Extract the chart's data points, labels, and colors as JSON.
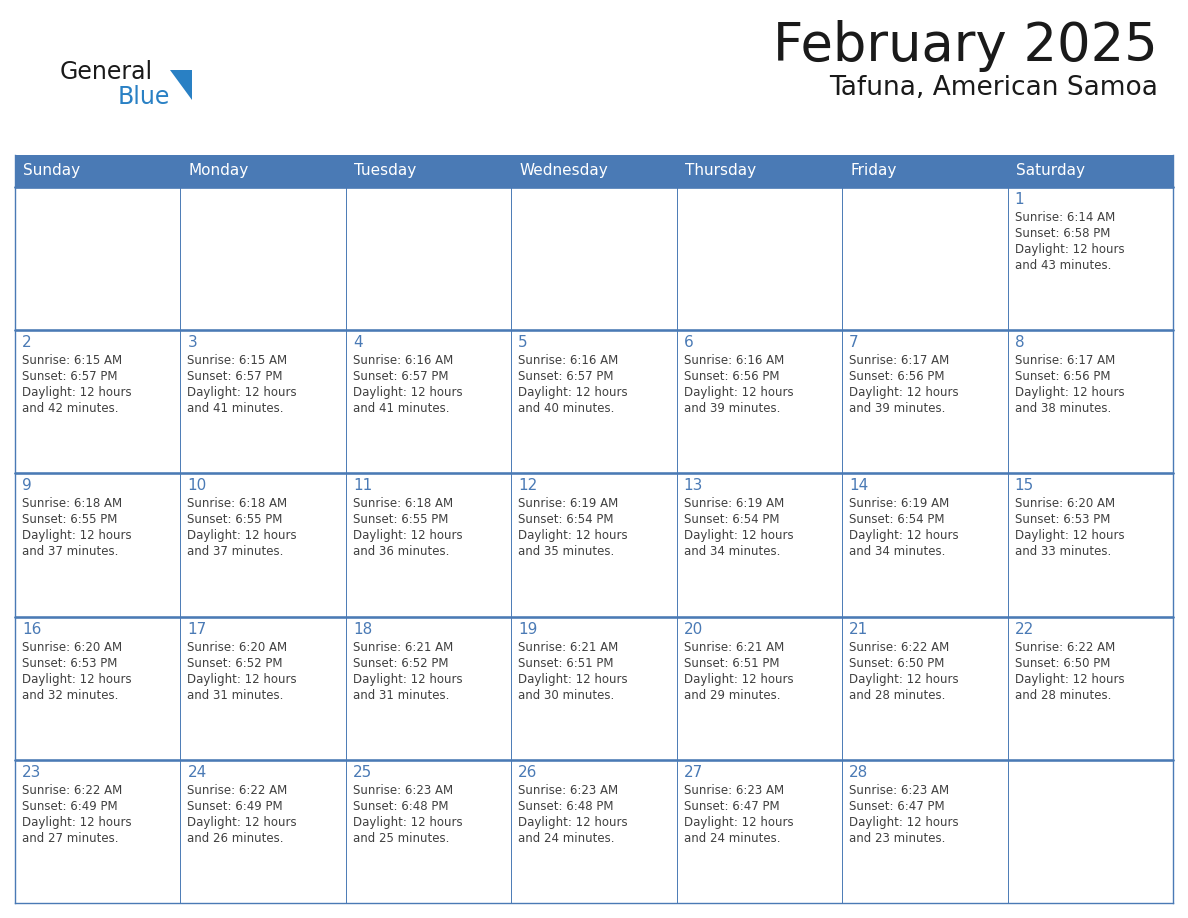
{
  "title": "February 2025",
  "subtitle": "Tafuna, American Samoa",
  "header_color": "#4a7ab5",
  "header_text_color": "#FFFFFF",
  "cell_bg_color": "#FFFFFF",
  "cell_border_color": "#4a7ab5",
  "day_number_color": "#4a7ab5",
  "cell_text_color": "#404040",
  "background_color": "#FFFFFF",
  "days_of_week": [
    "Sunday",
    "Monday",
    "Tuesday",
    "Wednesday",
    "Thursday",
    "Friday",
    "Saturday"
  ],
  "logo_general_color": "#1a1a1a",
  "logo_blue_color": "#2980C4",
  "calendar_data": [
    [
      null,
      null,
      null,
      null,
      null,
      null,
      {
        "day": 1,
        "sunrise": "6:14 AM",
        "sunset": "6:58 PM",
        "daylight": "12 hours and 43 minutes."
      }
    ],
    [
      {
        "day": 2,
        "sunrise": "6:15 AM",
        "sunset": "6:57 PM",
        "daylight": "12 hours and 42 minutes."
      },
      {
        "day": 3,
        "sunrise": "6:15 AM",
        "sunset": "6:57 PM",
        "daylight": "12 hours and 41 minutes."
      },
      {
        "day": 4,
        "sunrise": "6:16 AM",
        "sunset": "6:57 PM",
        "daylight": "12 hours and 41 minutes."
      },
      {
        "day": 5,
        "sunrise": "6:16 AM",
        "sunset": "6:57 PM",
        "daylight": "12 hours and 40 minutes."
      },
      {
        "day": 6,
        "sunrise": "6:16 AM",
        "sunset": "6:56 PM",
        "daylight": "12 hours and 39 minutes."
      },
      {
        "day": 7,
        "sunrise": "6:17 AM",
        "sunset": "6:56 PM",
        "daylight": "12 hours and 39 minutes."
      },
      {
        "day": 8,
        "sunrise": "6:17 AM",
        "sunset": "6:56 PM",
        "daylight": "12 hours and 38 minutes."
      }
    ],
    [
      {
        "day": 9,
        "sunrise": "6:18 AM",
        "sunset": "6:55 PM",
        "daylight": "12 hours and 37 minutes."
      },
      {
        "day": 10,
        "sunrise": "6:18 AM",
        "sunset": "6:55 PM",
        "daylight": "12 hours and 37 minutes."
      },
      {
        "day": 11,
        "sunrise": "6:18 AM",
        "sunset": "6:55 PM",
        "daylight": "12 hours and 36 minutes."
      },
      {
        "day": 12,
        "sunrise": "6:19 AM",
        "sunset": "6:54 PM",
        "daylight": "12 hours and 35 minutes."
      },
      {
        "day": 13,
        "sunrise": "6:19 AM",
        "sunset": "6:54 PM",
        "daylight": "12 hours and 34 minutes."
      },
      {
        "day": 14,
        "sunrise": "6:19 AM",
        "sunset": "6:54 PM",
        "daylight": "12 hours and 34 minutes."
      },
      {
        "day": 15,
        "sunrise": "6:20 AM",
        "sunset": "6:53 PM",
        "daylight": "12 hours and 33 minutes."
      }
    ],
    [
      {
        "day": 16,
        "sunrise": "6:20 AM",
        "sunset": "6:53 PM",
        "daylight": "12 hours and 32 minutes."
      },
      {
        "day": 17,
        "sunrise": "6:20 AM",
        "sunset": "6:52 PM",
        "daylight": "12 hours and 31 minutes."
      },
      {
        "day": 18,
        "sunrise": "6:21 AM",
        "sunset": "6:52 PM",
        "daylight": "12 hours and 31 minutes."
      },
      {
        "day": 19,
        "sunrise": "6:21 AM",
        "sunset": "6:51 PM",
        "daylight": "12 hours and 30 minutes."
      },
      {
        "day": 20,
        "sunrise": "6:21 AM",
        "sunset": "6:51 PM",
        "daylight": "12 hours and 29 minutes."
      },
      {
        "day": 21,
        "sunrise": "6:22 AM",
        "sunset": "6:50 PM",
        "daylight": "12 hours and 28 minutes."
      },
      {
        "day": 22,
        "sunrise": "6:22 AM",
        "sunset": "6:50 PM",
        "daylight": "12 hours and 28 minutes."
      }
    ],
    [
      {
        "day": 23,
        "sunrise": "6:22 AM",
        "sunset": "6:49 PM",
        "daylight": "12 hours and 27 minutes."
      },
      {
        "day": 24,
        "sunrise": "6:22 AM",
        "sunset": "6:49 PM",
        "daylight": "12 hours and 26 minutes."
      },
      {
        "day": 25,
        "sunrise": "6:23 AM",
        "sunset": "6:48 PM",
        "daylight": "12 hours and 25 minutes."
      },
      {
        "day": 26,
        "sunrise": "6:23 AM",
        "sunset": "6:48 PM",
        "daylight": "12 hours and 24 minutes."
      },
      {
        "day": 27,
        "sunrise": "6:23 AM",
        "sunset": "6:47 PM",
        "daylight": "12 hours and 24 minutes."
      },
      {
        "day": 28,
        "sunrise": "6:23 AM",
        "sunset": "6:47 PM",
        "daylight": "12 hours and 23 minutes."
      },
      null
    ]
  ]
}
